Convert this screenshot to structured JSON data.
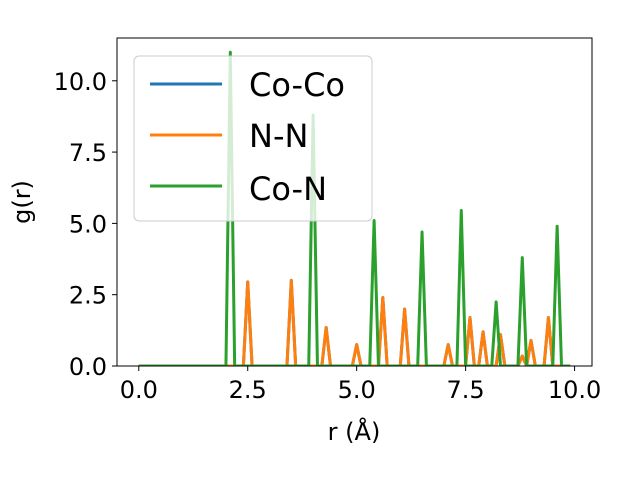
{
  "chart_data": {
    "type": "line",
    "xlabel": "r (Å)",
    "ylabel": "g(r)",
    "xlim": [
      -0.5,
      10.4
    ],
    "ylim": [
      0,
      11.5
    ],
    "xticks": [
      0.0,
      2.5,
      5.0,
      7.5,
      10.0
    ],
    "xtick_labels": [
      "0.0",
      "2.5",
      "5.0",
      "7.5",
      "10.0"
    ],
    "yticks": [
      0.0,
      2.5,
      5.0,
      7.5,
      10.0
    ],
    "ytick_labels": [
      "0.0",
      "2.5",
      "5.0",
      "7.5",
      "10.0"
    ],
    "grid": false,
    "legend_position": "top-left",
    "series": [
      {
        "name": "Co-Co",
        "color": "#1f77b4",
        "x": [
          0.0,
          2.4,
          2.5,
          2.6,
          3.4,
          3.5,
          3.6,
          4.2,
          4.3,
          4.4,
          4.9,
          5.0,
          5.1,
          5.5,
          5.6,
          5.7,
          6.0,
          6.1,
          6.2,
          7.0,
          7.1,
          7.2,
          7.5,
          7.6,
          7.7,
          7.8,
          7.9,
          8.0,
          8.2,
          8.3,
          8.4,
          8.7,
          8.8,
          8.9,
          9.0,
          9.1,
          9.3,
          9.4,
          9.5,
          9.6,
          9.9
        ],
        "y": [
          0.0,
          0.0,
          2.95,
          0.0,
          0.0,
          3.0,
          0.0,
          0.0,
          1.35,
          0.0,
          0.0,
          0.75,
          0.0,
          0.0,
          2.4,
          0.0,
          0.0,
          2.0,
          0.0,
          0.0,
          0.75,
          0.0,
          0.0,
          1.7,
          0.0,
          0.0,
          1.2,
          0.0,
          0.0,
          1.1,
          0.0,
          0.0,
          0.35,
          0.0,
          0.9,
          0.0,
          0.0,
          1.7,
          0.0,
          0.0,
          0.0
        ]
      },
      {
        "name": "N-N",
        "color": "#ff7f0e",
        "x": [
          0.0,
          2.4,
          2.5,
          2.6,
          3.4,
          3.5,
          3.6,
          4.2,
          4.3,
          4.4,
          4.9,
          5.0,
          5.1,
          5.5,
          5.6,
          5.7,
          6.0,
          6.1,
          6.2,
          7.0,
          7.1,
          7.2,
          7.5,
          7.6,
          7.7,
          7.8,
          7.9,
          8.0,
          8.2,
          8.3,
          8.4,
          8.7,
          8.8,
          8.9,
          9.0,
          9.1,
          9.3,
          9.4,
          9.5,
          9.6,
          9.9
        ],
        "y": [
          0.0,
          0.0,
          2.95,
          0.0,
          0.0,
          3.0,
          0.0,
          0.0,
          1.35,
          0.0,
          0.0,
          0.75,
          0.0,
          0.0,
          2.4,
          0.0,
          0.0,
          2.0,
          0.0,
          0.0,
          0.75,
          0.0,
          0.0,
          1.7,
          0.0,
          0.0,
          1.2,
          0.0,
          0.0,
          1.1,
          0.0,
          0.0,
          0.35,
          0.0,
          0.9,
          0.0,
          0.0,
          1.7,
          0.0,
          0.0,
          0.0
        ]
      },
      {
        "name": "Co-N",
        "color": "#2ca02c",
        "x": [
          0.0,
          2.0,
          2.1,
          2.2,
          3.9,
          4.0,
          4.1,
          5.3,
          5.4,
          5.5,
          6.4,
          6.5,
          6.6,
          7.3,
          7.4,
          7.5,
          8.1,
          8.2,
          8.3,
          8.7,
          8.8,
          8.9,
          9.5,
          9.6,
          9.7,
          9.9
        ],
        "y": [
          0.0,
          0.0,
          11.0,
          0.0,
          0.0,
          8.8,
          0.0,
          0.0,
          5.1,
          0.0,
          0.0,
          4.7,
          0.0,
          0.0,
          5.45,
          0.0,
          0.0,
          2.25,
          0.0,
          0.0,
          3.8,
          0.0,
          0.0,
          4.9,
          0.0,
          0.0
        ]
      }
    ]
  }
}
